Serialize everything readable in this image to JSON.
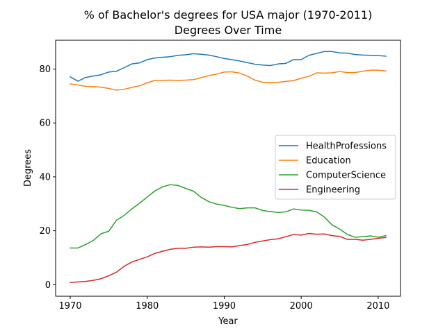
{
  "chart_data": {
    "type": "line",
    "title": "% of Bachelor's degrees for USA major (1970-2011)",
    "subtitle": "Degrees Over Time",
    "xlabel": "Year",
    "ylabel": "Degrees",
    "xlim": [
      1968.1,
      2012.9
    ],
    "ylim": [
      -4.3,
      90.7
    ],
    "xticks": [
      1970,
      1980,
      1990,
      2000,
      2010
    ],
    "yticks": [
      0,
      20,
      40,
      60,
      80
    ],
    "grid": false,
    "legend_position": "center-right",
    "x": [
      1970,
      1971,
      1972,
      1973,
      1974,
      1975,
      1976,
      1977,
      1978,
      1979,
      1980,
      1981,
      1982,
      1983,
      1984,
      1985,
      1986,
      1987,
      1988,
      1989,
      1990,
      1991,
      1992,
      1993,
      1994,
      1995,
      1996,
      1997,
      1998,
      1999,
      2000,
      2001,
      2002,
      2003,
      2004,
      2005,
      2006,
      2007,
      2008,
      2009,
      2010,
      2011
    ],
    "series": [
      {
        "name": "HealthProfessions",
        "color": "#1f77b4",
        "values": [
          77.1,
          75.5,
          76.9,
          77.4,
          77.9,
          78.9,
          79.2,
          80.5,
          81.9,
          82.3,
          83.5,
          84.1,
          84.4,
          84.6,
          85.1,
          85.3,
          85.7,
          85.5,
          85.2,
          84.6,
          83.9,
          83.5,
          83.0,
          82.4,
          81.8,
          81.5,
          81.3,
          81.9,
          82.1,
          83.5,
          83.5,
          85.1,
          85.8,
          86.5,
          86.5,
          86.0,
          85.9,
          85.4,
          85.2,
          85.1,
          85.0,
          84.8
        ]
      },
      {
        "name": "Education",
        "color": "#ff7f0e",
        "values": [
          74.5,
          74.1,
          73.6,
          73.5,
          73.3,
          72.8,
          72.2,
          72.5,
          73.2,
          73.8,
          74.9,
          75.8,
          75.8,
          75.9,
          75.8,
          75.9,
          76.1,
          76.8,
          77.6,
          78.1,
          78.9,
          79.0,
          78.5,
          77.4,
          75.9,
          75.1,
          75.0,
          75.1,
          75.4,
          75.7,
          76.6,
          77.3,
          78.6,
          78.5,
          78.6,
          79.1,
          78.7,
          78.7,
          79.2,
          79.6,
          79.6,
          79.3
        ]
      },
      {
        "name": "ComputerScience",
        "color": "#2ca02c",
        "values": [
          13.6,
          13.6,
          14.9,
          16.4,
          18.9,
          19.8,
          23.9,
          25.7,
          28.1,
          30.2,
          32.5,
          34.8,
          36.3,
          37.1,
          36.8,
          35.7,
          34.7,
          32.4,
          30.8,
          29.9,
          29.4,
          28.7,
          28.2,
          28.5,
          28.5,
          27.5,
          27.1,
          26.8,
          27.0,
          28.1,
          27.7,
          27.6,
          27.0,
          25.1,
          22.2,
          20.6,
          18.6,
          17.6,
          17.8,
          18.1,
          17.6,
          18.2
        ]
      },
      {
        "name": "Engineering",
        "color": "#d62728",
        "values": [
          0.8,
          1.0,
          1.2,
          1.6,
          2.2,
          3.3,
          4.6,
          6.8,
          8.4,
          9.4,
          10.3,
          11.6,
          12.4,
          13.1,
          13.5,
          13.5,
          13.9,
          14.0,
          13.9,
          14.1,
          14.1,
          14.0,
          14.5,
          14.9,
          15.7,
          16.2,
          16.7,
          17.0,
          17.8,
          18.6,
          18.4,
          19.0,
          18.7,
          18.8,
          18.2,
          17.9,
          16.8,
          16.8,
          16.5,
          16.8,
          17.2,
          17.5
        ]
      }
    ]
  }
}
